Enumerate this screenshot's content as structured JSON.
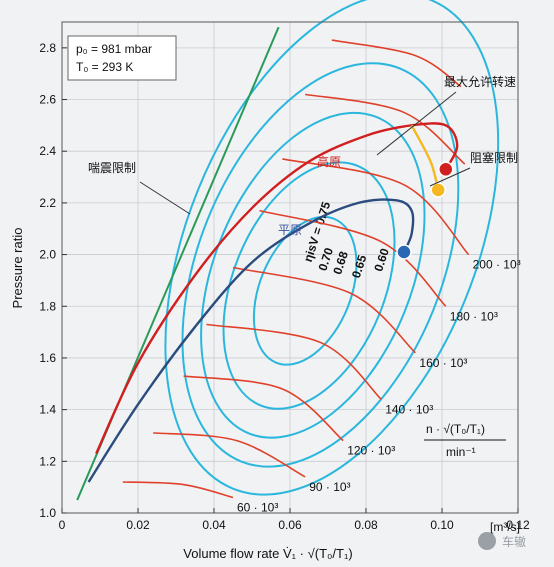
{
  "chart_data": {
    "type": "line",
    "title": "",
    "xlabel": "Volume flow rate V̇₁ · √(T₀/T₁)",
    "ylabel": "Pressure ratio",
    "x_unit": "[m³/s]",
    "xlim": [
      0,
      0.12
    ],
    "ylim": [
      1.0,
      2.9
    ],
    "x_ticks": [
      "0",
      "0.02",
      "0.04",
      "0.06",
      "0.08",
      "0.10",
      "0.12"
    ],
    "y_ticks": [
      "1.0",
      "1.2",
      "1.4",
      "1.6",
      "1.8",
      "2.0",
      "2.2",
      "2.4",
      "2.6",
      "2.8"
    ],
    "grid": true,
    "info_box": {
      "line1": "p₀ = 981 mbar",
      "line2": "T₀ = 293 K"
    },
    "speed_unit_label": {
      "numerator": "n · √(T₀/T₁)",
      "denominator": "min⁻¹"
    },
    "annotations": {
      "max_speed": "最大允许转速",
      "surge_limit": "喘震限制",
      "choke_limit": "阻塞限制",
      "highland": "高原",
      "plain": "平原"
    },
    "watermark": "车辙",
    "colors": {
      "surge_line": "#2a9a5a",
      "efficiency": "#2bb7dd",
      "speed": "#e0412b",
      "highland": "#d11f1f",
      "plain": "#2b4c7e",
      "limit": "#f5b820"
    },
    "surge_line": {
      "x": [
        0.004,
        0.057
      ],
      "y": [
        1.05,
        2.88
      ]
    },
    "speed_lines": [
      {
        "label": "60 · 10³",
        "points": [
          [
            0.016,
            1.12
          ],
          [
            0.032,
            1.11
          ],
          [
            0.045,
            1.06
          ]
        ]
      },
      {
        "label": "90 · 10³",
        "points": [
          [
            0.024,
            1.31
          ],
          [
            0.046,
            1.28
          ],
          [
            0.064,
            1.14
          ]
        ]
      },
      {
        "label": "120 · 10³",
        "points": [
          [
            0.032,
            1.53
          ],
          [
            0.058,
            1.48
          ],
          [
            0.074,
            1.28
          ]
        ]
      },
      {
        "label": "140 · 10³",
        "points": [
          [
            0.038,
            1.73
          ],
          [
            0.068,
            1.66
          ],
          [
            0.084,
            1.44
          ]
        ]
      },
      {
        "label": "160 · 10³",
        "points": [
          [
            0.045,
            1.95
          ],
          [
            0.076,
            1.85
          ],
          [
            0.093,
            1.62
          ]
        ]
      },
      {
        "label": "180 · 10³",
        "points": [
          [
            0.052,
            2.17
          ],
          [
            0.084,
            2.05
          ],
          [
            0.101,
            1.8
          ]
        ]
      },
      {
        "label": "200 · 10³",
        "points": [
          [
            0.058,
            2.37
          ],
          [
            0.09,
            2.27
          ],
          [
            0.107,
            2.0
          ]
        ]
      },
      {
        "label": "",
        "points": [
          [
            0.064,
            2.62
          ],
          [
            0.09,
            2.55
          ],
          [
            0.106,
            2.35
          ]
        ]
      },
      {
        "label": "",
        "points": [
          [
            0.071,
            2.83
          ],
          [
            0.093,
            2.77
          ],
          [
            0.105,
            2.65
          ]
        ]
      }
    ],
    "efficiency_islands": [
      {
        "label": "ηisV = 0.75",
        "center": [
          0.064,
          1.86
        ],
        "rx": 0.012,
        "ry": 0.3,
        "rotation_deg": 22
      },
      {
        "label": "0.70",
        "center": [
          0.065,
          1.88
        ],
        "rx": 0.02,
        "ry": 0.5,
        "rotation_deg": 22
      },
      {
        "label": "0.68",
        "center": [
          0.066,
          1.92
        ],
        "rx": 0.026,
        "ry": 0.66,
        "rotation_deg": 22
      },
      {
        "label": "0.65",
        "center": [
          0.068,
          1.96
        ],
        "rx": 0.032,
        "ry": 0.82,
        "rotation_deg": 22
      },
      {
        "label": "0.60",
        "center": [
          0.071,
          2.04
        ],
        "rx": 0.038,
        "ry": 1.02,
        "rotation_deg": 22
      }
    ],
    "series": [
      {
        "name": "高原",
        "x": [
          0.009,
          0.02,
          0.035,
          0.05,
          0.065,
          0.08,
          0.092,
          0.101,
          0.104,
          0.101
        ],
        "y": [
          1.23,
          1.58,
          1.92,
          2.18,
          2.36,
          2.46,
          2.5,
          2.5,
          2.42,
          2.33
        ]
      },
      {
        "name": "平原",
        "x": [
          0.007,
          0.02,
          0.035,
          0.05,
          0.065,
          0.078,
          0.088,
          0.092,
          0.092,
          0.09
        ],
        "y": [
          1.12,
          1.42,
          1.72,
          1.97,
          2.12,
          2.2,
          2.21,
          2.17,
          2.08,
          2.01
        ]
      }
    ],
    "limit_line": {
      "x": [
        0.092,
        0.097,
        0.099
      ],
      "y": [
        2.5,
        2.36,
        2.25
      ]
    },
    "operating_points": [
      {
        "x": 0.101,
        "y": 2.33,
        "color": "#d11f1f"
      },
      {
        "x": 0.099,
        "y": 2.25,
        "color": "#f5b820"
      },
      {
        "x": 0.09,
        "y": 2.01,
        "color": "#2b68b4"
      }
    ]
  }
}
